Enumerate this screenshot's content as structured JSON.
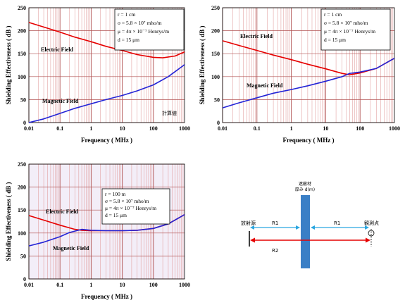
{
  "chart_data": [
    {
      "type": "line",
      "xscale": "log",
      "xlim": [
        0.01,
        1000
      ],
      "ylim": [
        0,
        250
      ],
      "xlabel": "Frequency ( MHz )",
      "ylabel": "Shielding Effectiveness ( dB )",
      "xticks": [
        "0.01",
        "0.1",
        "1",
        "10",
        "100",
        "1000"
      ],
      "yticks": [
        "0",
        "50",
        "100",
        "150",
        "200",
        "250"
      ],
      "grid": true,
      "info": [
        "r = 1 cm",
        "σ = 5.8 × 10⁷ mho/m",
        "μ = 4π × 10⁻⁷ Henrys/m",
        "d = 15 μm"
      ],
      "annotation": "計算値",
      "series": [
        {
          "name": "Electric Field",
          "color": "#e60000",
          "x": [
            0.01,
            0.03,
            0.1,
            0.3,
            1,
            3,
            10,
            30,
            100,
            200,
            500,
            1000
          ],
          "y": [
            218,
            208,
            197,
            186,
            176,
            166,
            157,
            148,
            142,
            141,
            145,
            154
          ]
        },
        {
          "name": "Magnetic Field",
          "color": "#2424d6",
          "x": [
            0.01,
            0.03,
            0.1,
            0.3,
            1,
            3,
            10,
            30,
            100,
            300,
            1000
          ],
          "y": [
            0,
            8,
            20,
            31,
            41,
            50,
            59,
            69,
            82,
            100,
            126
          ]
        }
      ]
    },
    {
      "type": "line",
      "xscale": "log",
      "xlim": [
        0.01,
        1000
      ],
      "ylim": [
        0,
        250
      ],
      "xlabel": "Frequency ( MHz )",
      "ylabel": "Shielding Effectiveness ( dB )",
      "xticks": [
        "0.01",
        "0.1",
        "1",
        "10",
        "100",
        "1000"
      ],
      "yticks": [
        "0",
        "50",
        "100",
        "150",
        "200",
        "250"
      ],
      "grid": true,
      "info": [
        "r = 1 cm",
        "σ = 5.8 × 10⁷ mho/m",
        "μ = 4π × 10⁻⁷ Henrys/m",
        "d = 15 μm"
      ],
      "series": [
        {
          "name": "Electric Field",
          "color": "#e60000",
          "x": [
            0.01,
            0.03,
            0.1,
            0.3,
            1,
            3,
            10,
            30,
            50,
            100,
            300,
            1000
          ],
          "y": [
            178,
            168,
            157,
            147,
            137,
            127,
            117,
            107,
            104,
            108,
            118,
            140
          ]
        },
        {
          "name": "Magnetic Field",
          "color": "#2424d6",
          "x": [
            0.01,
            0.03,
            0.1,
            0.3,
            1,
            3,
            10,
            30,
            50,
            100,
            300,
            1000
          ],
          "y": [
            32,
            43,
            54,
            64,
            72,
            80,
            90,
            100,
            107,
            110,
            118,
            140
          ]
        }
      ]
    },
    {
      "type": "line",
      "xscale": "log",
      "xlim": [
        0.01,
        1000
      ],
      "ylim": [
        0,
        250
      ],
      "xlabel": "Frequency ( MHz )",
      "ylabel": "Shielding Effectiveness ( dB )",
      "xticks": [
        "0.01",
        "0.1",
        "1",
        "10",
        "100",
        "1000"
      ],
      "yticks": [
        "0",
        "50",
        "100",
        "150",
        "200",
        "250"
      ],
      "grid": true,
      "info": [
        "r = 100 m",
        "σ = 5.8 × 10⁷ mho/m",
        "μ = 4π × 10⁻⁷ Henrys/m",
        "d = 15 μm"
      ],
      "series": [
        {
          "name": "Electric Field",
          "color": "#e60000",
          "x": [
            0.01,
            0.03,
            0.1,
            0.3,
            0.5,
            1,
            3,
            10,
            30,
            100,
            300,
            1000
          ],
          "y": [
            138,
            128,
            117,
            108,
            106,
            105,
            105,
            105,
            106,
            110,
            120,
            140
          ]
        },
        {
          "name": "Magnetic Field",
          "color": "#2424d6",
          "x": [
            0.01,
            0.03,
            0.1,
            0.2,
            0.5,
            1,
            3,
            10,
            30,
            100,
            300,
            1000
          ],
          "y": [
            72,
            80,
            92,
            101,
            108,
            106,
            105,
            105,
            106,
            110,
            120,
            140
          ]
        }
      ]
    }
  ],
  "diagram": {
    "source_label": "放射源",
    "observer_label": "観測点",
    "shield_label_line1": "遮蔽材",
    "shield_label_line2": "厚み d(m)",
    "r1_left": "R1",
    "r1_right": "R1",
    "r2": "R2",
    "colors": {
      "shield": "#3a7fc6",
      "r1_arrow": "#2aa6e0",
      "r2_arrow": "#e60000"
    }
  }
}
